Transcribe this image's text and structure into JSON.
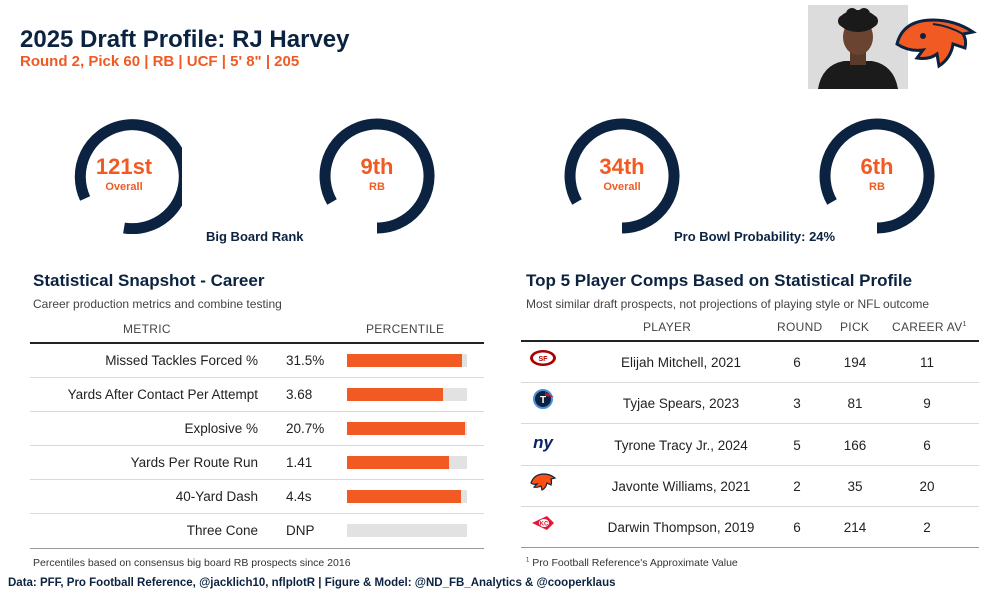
{
  "header": {
    "title": "2025 Draft Profile: RJ Harvey",
    "subtitle": "Round 2, Pick 60 | RB | UCF | 5' 8\" | 205"
  },
  "rings": [
    {
      "value": "121st",
      "label": "Overall"
    },
    {
      "value": "9th",
      "label": "RB"
    },
    {
      "value": "34th",
      "label": "Overall"
    },
    {
      "value": "6th",
      "label": "RB"
    }
  ],
  "ring_captions": {
    "big_board": "Big Board Rank",
    "pro_bowl": "Pro Bowl Probability: 24%"
  },
  "colors": {
    "navy": "#0b2340",
    "orange": "#f15a22",
    "track": "#e2e2e2"
  },
  "stats": {
    "title": "Statistical Snapshot - Career",
    "subtitle": "Career production metrics and combine testing",
    "col_metric": "METRIC",
    "col_percentile": "PERCENTILE",
    "rows": [
      {
        "metric": "Missed Tackles Forced %",
        "value": "31.5%",
        "percentile": 0.96
      },
      {
        "metric": "Yards After Contact Per Attempt",
        "value": "3.68",
        "percentile": 0.8
      },
      {
        "metric": "Explosive %",
        "value": "20.7%",
        "percentile": 0.98
      },
      {
        "metric": "Yards Per Route Run",
        "value": "1.41",
        "percentile": 0.85
      },
      {
        "metric": "40-Yard Dash",
        "value": "4.4s",
        "percentile": 0.95
      },
      {
        "metric": "Three Cone",
        "value": "DNP",
        "percentile": 0
      }
    ],
    "footnote": "Percentiles based on consensus big board RB prospects since 2016"
  },
  "comps": {
    "title": "Top 5 Player Comps Based on Statistical Profile",
    "subtitle": "Most similar draft prospects, not projections of playing style or NFL outcome",
    "col_player": "PLAYER",
    "col_round": "ROUND",
    "col_pick": "PICK",
    "col_av": "CAREER AV",
    "col_av_sup": "1",
    "rows": [
      {
        "team_icon": "49ers-logo-icon",
        "player": "Elijah Mitchell, 2021",
        "round": "6",
        "pick": "194",
        "av": "11"
      },
      {
        "team_icon": "titans-logo-icon",
        "player": "Tyjae Spears, 2023",
        "round": "3",
        "pick": "81",
        "av": "9"
      },
      {
        "team_icon": "giants-logo-icon",
        "player": "Tyrone Tracy Jr., 2024",
        "round": "5",
        "pick": "166",
        "av": "6"
      },
      {
        "team_icon": "broncos-logo-icon",
        "player": "Javonte Williams, 2021",
        "round": "2",
        "pick": "35",
        "av": "20"
      },
      {
        "team_icon": "chiefs-logo-icon",
        "player": "Darwin Thompson, 2019",
        "round": "6",
        "pick": "214",
        "av": "2"
      }
    ],
    "footnote_sup": "1",
    "footnote": "Pro Football Reference's Approximate Value"
  },
  "source": "Data: PFF, Pro Football Reference, @jacklich10, nflplotR | Figure & Model: @ND_FB_Analytics & @cooperklaus"
}
